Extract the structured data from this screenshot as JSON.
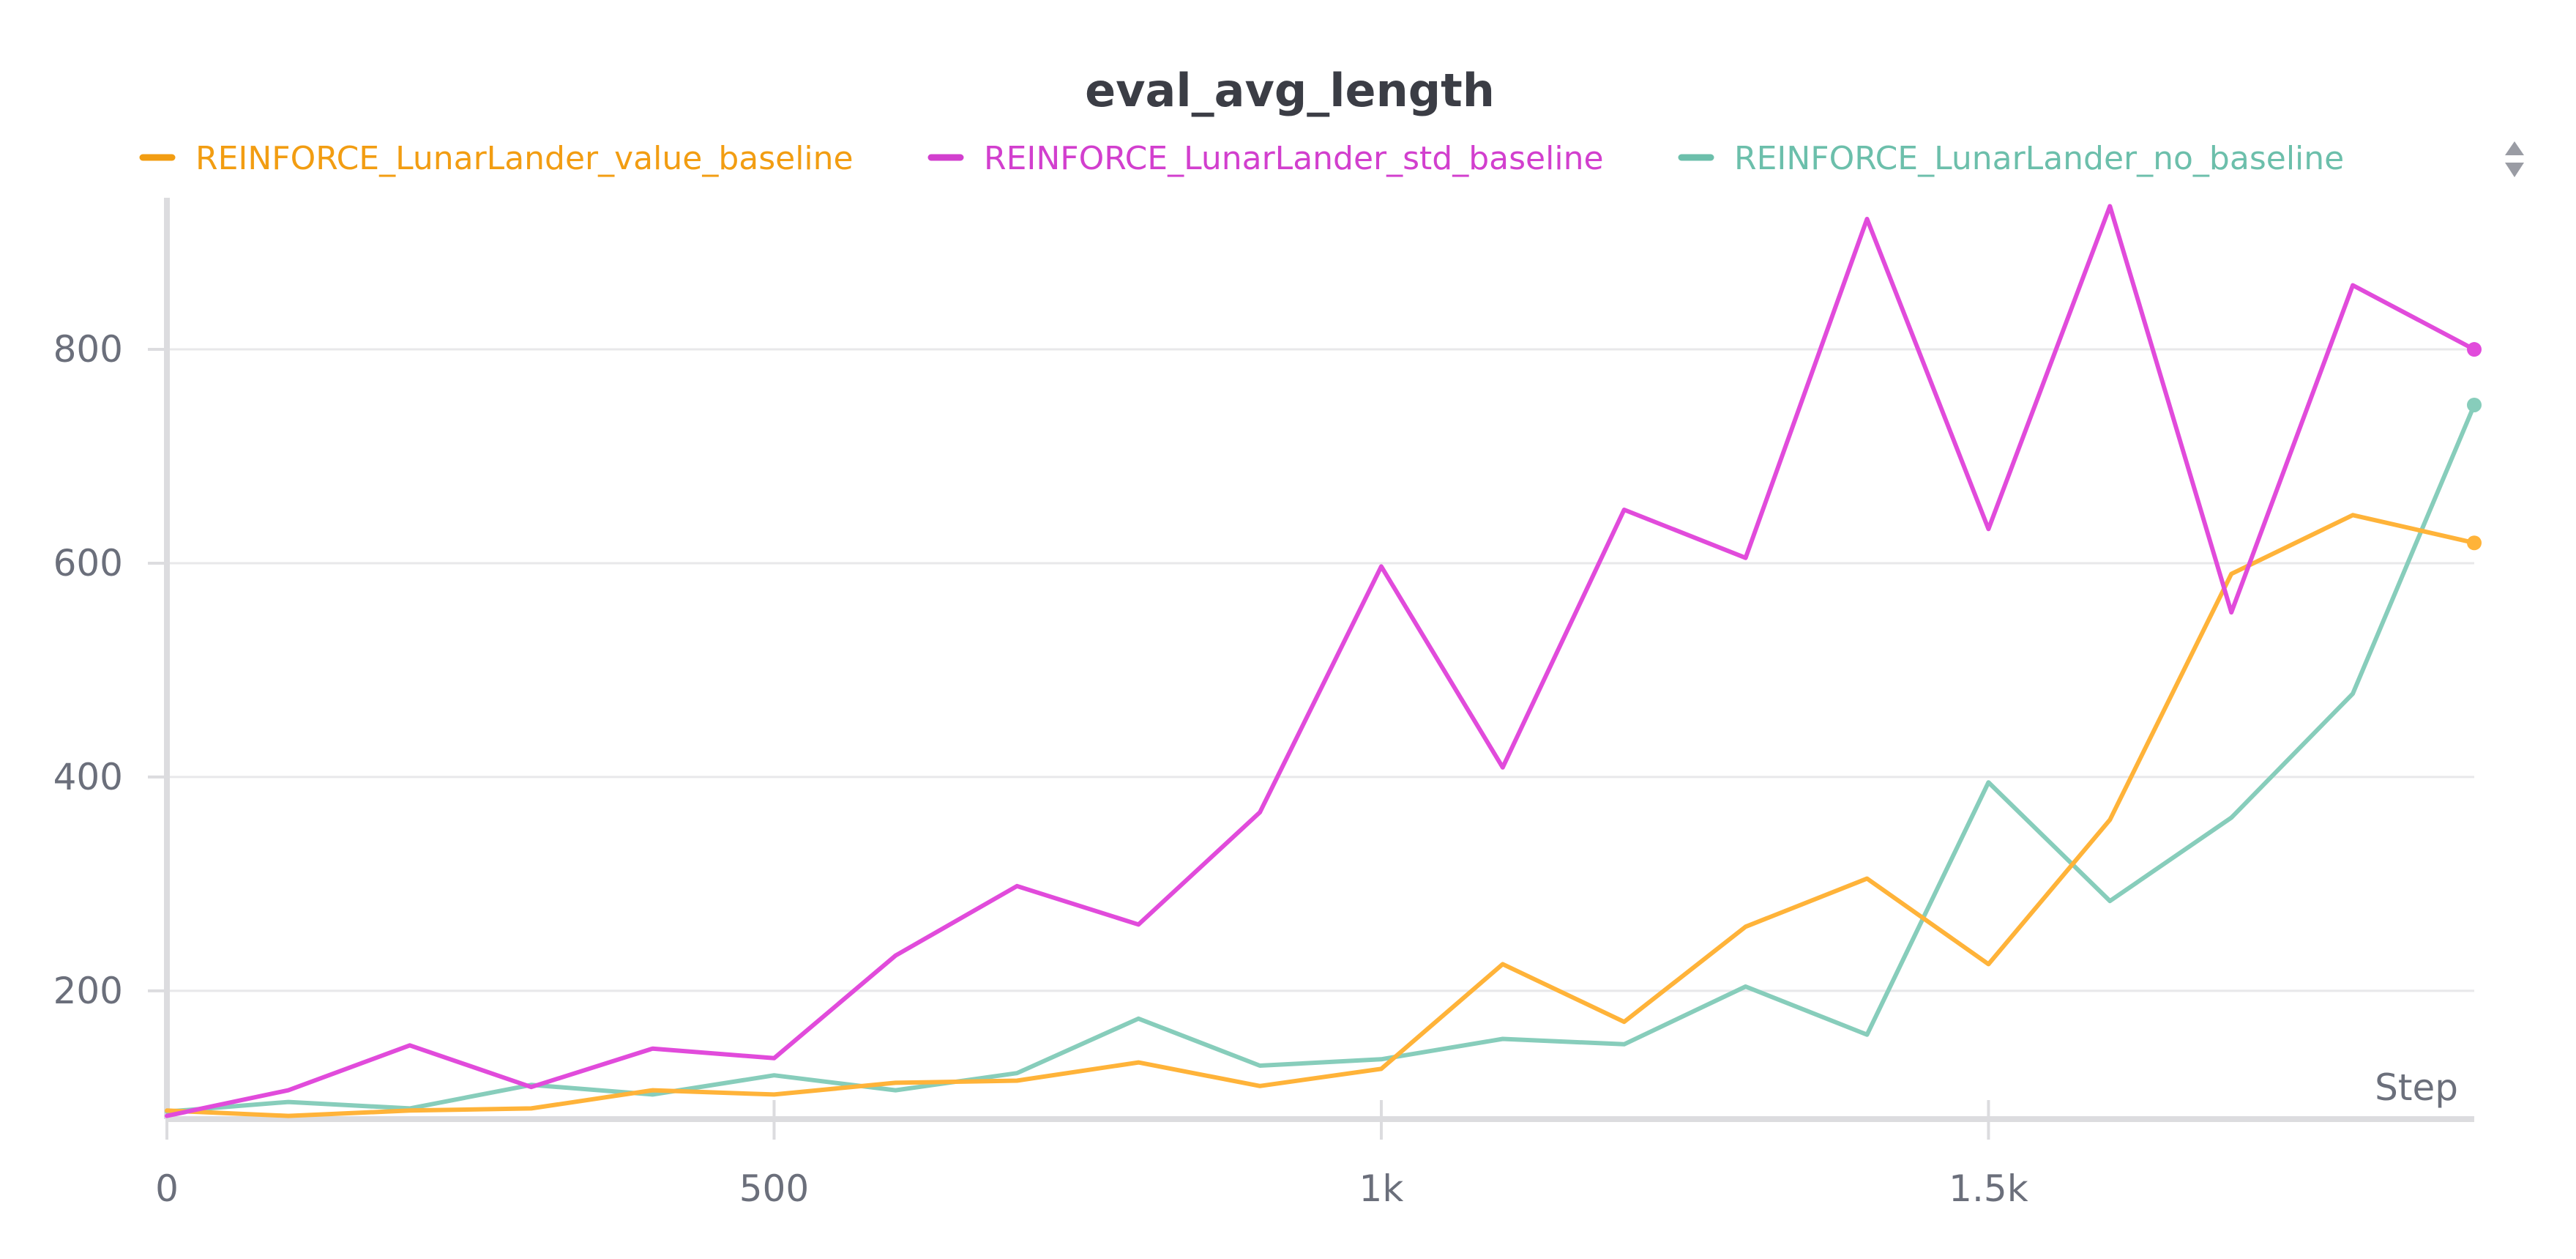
{
  "chart_data": {
    "type": "line",
    "title": "eval_avg_length",
    "xlabel": "Step",
    "ylabel": "",
    "xlim": [
      0,
      1900
    ],
    "ylim": [
      80,
      935
    ],
    "x_ticks": [
      {
        "value": 0,
        "label": "0"
      },
      {
        "value": 500,
        "label": "500"
      },
      {
        "value": 1000,
        "label": "1k"
      },
      {
        "value": 1500,
        "label": "1.5k"
      }
    ],
    "y_ticks": [
      {
        "value": 200,
        "label": "200"
      },
      {
        "value": 400,
        "label": "400"
      },
      {
        "value": 600,
        "label": "600"
      },
      {
        "value": 800,
        "label": "800"
      }
    ],
    "grid": true,
    "legend_position": "top",
    "x": [
      0,
      100,
      200,
      300,
      400,
      500,
      600,
      700,
      800,
      900,
      1000,
      1100,
      1200,
      1300,
      1400,
      1500,
      1600,
      1700,
      1800,
      1900
    ],
    "series": [
      {
        "name": "REINFORCE_LunarLander_value_baseline",
        "color": "#ffb339",
        "legend_color": "#f29d12",
        "values": [
          88,
          83,
          88,
          90,
          107,
          103,
          114,
          116,
          133,
          111,
          127,
          225,
          171,
          260,
          305,
          225,
          360,
          590,
          645,
          619
        ]
      },
      {
        "name": "REINFORCE_LunarLander_std_baseline",
        "color": "#e14bdb",
        "legend_color": "#d23fce",
        "values": [
          83,
          107,
          149,
          110,
          146,
          137,
          233,
          298,
          262,
          367,
          597,
          409,
          650,
          605,
          922,
          632,
          934,
          554,
          860,
          800
        ]
      },
      {
        "name": "REINFORCE_LunarLander_no_baseline",
        "color": "#87cdbb",
        "legend_color": "#6cbfab",
        "values": [
          87,
          96,
          90,
          112,
          103,
          121,
          107,
          123,
          174,
          130,
          136,
          155,
          150,
          204,
          159,
          395,
          284,
          362,
          478,
          748
        ]
      }
    ]
  }
}
